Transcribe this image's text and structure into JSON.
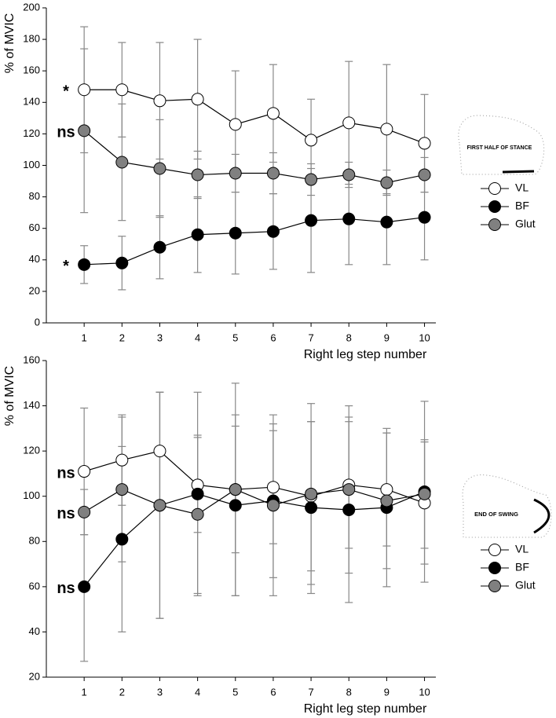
{
  "chart_data": [
    {
      "type": "line",
      "y_label": "% of MVIC",
      "x_label": "Right leg step number",
      "inset_label": "FIRST HALF OF STANCE",
      "x": [
        1,
        2,
        3,
        4,
        5,
        6,
        7,
        8,
        9,
        10
      ],
      "xticks": [
        1,
        2,
        3,
        4,
        5,
        6,
        7,
        8,
        9,
        10
      ],
      "xlim": [
        0,
        10.3
      ],
      "ylim": [
        0,
        200
      ],
      "yticks": [
        0,
        20,
        40,
        60,
        80,
        100,
        120,
        140,
        160,
        180,
        200
      ],
      "series": [
        {
          "name": "VL",
          "color": "#ffffff",
          "annotation": "*",
          "values": [
            148,
            148,
            141,
            142,
            126,
            133,
            116,
            127,
            123,
            114
          ],
          "errors": [
            40,
            30,
            37,
            38,
            34,
            31,
            26,
            39,
            41,
            31
          ]
        },
        {
          "name": "BF",
          "color": "#000000",
          "annotation": "*",
          "values": [
            37,
            38,
            48,
            56,
            57,
            58,
            65,
            66,
            64,
            67
          ],
          "errors": [
            12,
            17,
            20,
            24,
            26,
            24,
            33,
            29,
            27,
            27
          ]
        },
        {
          "name": "Glut",
          "color": "#808080",
          "annotation": "ns",
          "values": [
            122,
            102,
            98,
            94,
            95,
            95,
            91,
            94,
            89,
            94
          ],
          "errors": [
            52,
            37,
            31,
            15,
            12,
            13,
            10,
            8,
            8,
            11
          ]
        }
      ]
    },
    {
      "type": "line",
      "y_label": "% of MVIC",
      "x_label": "Right leg step number",
      "inset_label": "END OF SWING",
      "x": [
        1,
        2,
        3,
        4,
        5,
        6,
        7,
        8,
        9,
        10
      ],
      "xticks": [
        1,
        2,
        3,
        4,
        5,
        6,
        7,
        8,
        9,
        10
      ],
      "xlim": [
        0,
        10.3
      ],
      "ylim": [
        20,
        160
      ],
      "yticks": [
        20,
        40,
        60,
        80,
        100,
        120,
        140,
        160
      ],
      "series": [
        {
          "name": "VL",
          "color": "#ffffff",
          "annotation": "ns",
          "values": [
            111,
            116,
            120,
            105,
            103,
            104,
            100,
            105,
            103,
            97
          ],
          "errors": [
            28,
            20,
            26,
            21,
            28,
            25,
            33,
            28,
            25,
            27
          ]
        },
        {
          "name": "BF",
          "color": "#000000",
          "annotation": "ns",
          "values": [
            60,
            81,
            96,
            101,
            96,
            98,
            95,
            94,
            95,
            102
          ],
          "errors": [
            33,
            41,
            50,
            45,
            40,
            34,
            38,
            41,
            35,
            40
          ]
        },
        {
          "name": "Glut",
          "color": "#808080",
          "annotation": "ns",
          "values": [
            93,
            103,
            96,
            92,
            103,
            96,
            101,
            103,
            98,
            101
          ],
          "errors": [
            10,
            32,
            50,
            35,
            47,
            40,
            40,
            37,
            30,
            24
          ]
        }
      ]
    }
  ]
}
